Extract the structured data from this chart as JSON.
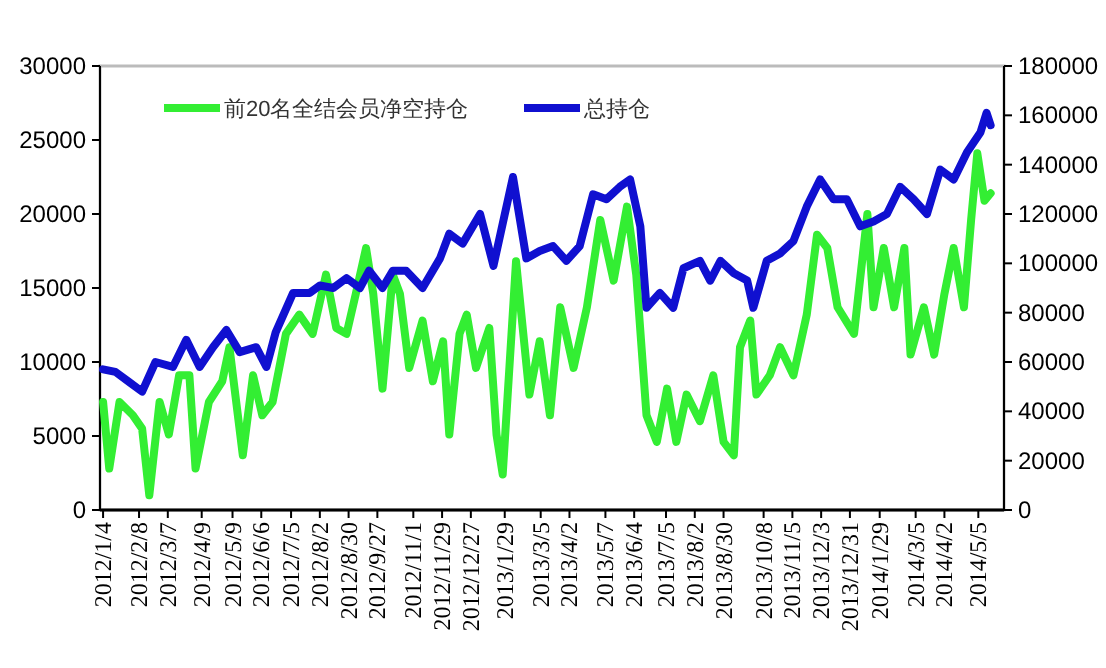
{
  "chart_data": {
    "type": "line",
    "xlim": [
      "2012-01-01",
      "2014-05-30"
    ],
    "xticks": [
      {
        "value": "2012-01-04",
        "label": "2012/1/4"
      },
      {
        "value": "2012-02-08",
        "label": "2012/2/8"
      },
      {
        "value": "2012-03-07",
        "label": "2012/3/7"
      },
      {
        "value": "2012-04-09",
        "label": "2012/4/9"
      },
      {
        "value": "2012-05-09",
        "label": "2012/5/9"
      },
      {
        "value": "2012-06-06",
        "label": "2012/6/6"
      },
      {
        "value": "2012-07-05",
        "label": "2012/7/5"
      },
      {
        "value": "2012-08-02",
        "label": "2012/8/2"
      },
      {
        "value": "2012-08-30",
        "label": "2012/8/30"
      },
      {
        "value": "2012-09-27",
        "label": "2012/9/27"
      },
      {
        "value": "2012-11-01",
        "label": "2012/11/1"
      },
      {
        "value": "2012-11-29",
        "label": "2012/11/29"
      },
      {
        "value": "2012-12-27",
        "label": "2012/12/27"
      },
      {
        "value": "2013-01-29",
        "label": "2013/1/29"
      },
      {
        "value": "2013-03-05",
        "label": "2013/3/5"
      },
      {
        "value": "2013-04-02",
        "label": "2013/4/2"
      },
      {
        "value": "2013-05-07",
        "label": "2013/5/7"
      },
      {
        "value": "2013-06-04",
        "label": "2013/6/4"
      },
      {
        "value": "2013-07-05",
        "label": "2013/7/5"
      },
      {
        "value": "2013-08-02",
        "label": "2013/8/2"
      },
      {
        "value": "2013-08-30",
        "label": "2013/8/30"
      },
      {
        "value": "2013-10-08",
        "label": "2013/10/8"
      },
      {
        "value": "2013-11-05",
        "label": "2013/11/5"
      },
      {
        "value": "2013-12-03",
        "label": "2013/12/3"
      },
      {
        "value": "2013-12-31",
        "label": "2013/12/31"
      },
      {
        "value": "2014-01-29",
        "label": "2014/1/29"
      },
      {
        "value": "2014-03-05",
        "label": "2014/3/5"
      },
      {
        "value": "2014-04-02",
        "label": "2014/4/2"
      },
      {
        "value": "2014-05-05",
        "label": "2014/5/5"
      }
    ],
    "ylim": [
      0,
      30000
    ],
    "yticks": [
      0,
      5000,
      10000,
      15000,
      20000,
      25000,
      30000
    ],
    "y2lim": [
      0,
      180000
    ],
    "y2ticks": [
      0,
      20000,
      40000,
      60000,
      80000,
      100000,
      120000,
      140000,
      160000,
      180000
    ],
    "legend": "top",
    "series": [
      {
        "name": "前20名全结会员净空持仓",
        "color": "#33ee33",
        "x": [
          "2012-01-04",
          "2012-01-10",
          "2012-01-20",
          "2012-02-02",
          "2012-02-11",
          "2012-02-18",
          "2012-02-28",
          "2012-03-08",
          "2012-03-18",
          "2012-03-28",
          "2012-04-03",
          "2012-04-16",
          "2012-04-29",
          "2012-05-06",
          "2012-05-19",
          "2012-05-29",
          "2012-06-07",
          "2012-06-17",
          "2012-06-30",
          "2012-07-13",
          "2012-07-26",
          "2012-08-08",
          "2012-08-18",
          "2012-08-28",
          "2012-09-06",
          "2012-09-16",
          "2012-09-23",
          "2012-10-02",
          "2012-10-12",
          "2012-10-19",
          "2012-10-28",
          "2012-11-10",
          "2012-11-20",
          "2012-11-30",
          "2012-12-06",
          "2012-12-16",
          "2012-12-23",
          "2013-01-01",
          "2013-01-14",
          "2013-01-21",
          "2013-01-27",
          "2013-02-09",
          "2013-02-22",
          "2013-03-04",
          "2013-03-14",
          "2013-03-24",
          "2013-04-06",
          "2013-04-19",
          "2013-05-02",
          "2013-05-15",
          "2013-05-28",
          "2013-06-06",
          "2013-06-16",
          "2013-06-26",
          "2013-07-06",
          "2013-07-15",
          "2013-07-25",
          "2013-08-07",
          "2013-08-20",
          "2013-08-30",
          "2013-09-09",
          "2013-09-15",
          "2013-09-25",
          "2013-10-01",
          "2013-10-14",
          "2013-10-24",
          "2013-11-06",
          "2013-11-19",
          "2013-11-29",
          "2013-12-09",
          "2013-12-19",
          "2014-01-04",
          "2014-01-17",
          "2014-01-23",
          "2014-02-02",
          "2014-02-12",
          "2014-02-22",
          "2014-02-28",
          "2014-03-13",
          "2014-03-23",
          "2014-04-02",
          "2014-04-11",
          "2014-04-21",
          "2014-04-28",
          "2014-05-04",
          "2014-05-11",
          "2014-05-17"
        ],
        "values": [
          7300,
          2800,
          7300,
          6400,
          5500,
          1000,
          7300,
          5100,
          9100,
          9100,
          2800,
          7300,
          8700,
          11000,
          3700,
          9100,
          6400,
          7300,
          11900,
          13200,
          11900,
          15900,
          12300,
          11900,
          14600,
          17700,
          14600,
          8200,
          15900,
          14600,
          9600,
          12800,
          8700,
          11400,
          5100,
          11900,
          13200,
          9600,
          12300,
          5100,
          2400,
          16800,
          7800,
          11400,
          6400,
          13700,
          9600,
          13700,
          19600,
          15500,
          20500,
          15900,
          6400,
          4600,
          8200,
          4600,
          7800,
          6000,
          9100,
          4600,
          3700,
          11000,
          12800,
          7800,
          9100,
          11000,
          9100,
          13200,
          18600,
          17700,
          13700,
          11900,
          20000,
          13700,
          17700,
          13700,
          17700,
          10500,
          13700,
          10500,
          14600,
          17700,
          13700,
          19600,
          24100,
          20900,
          21400
        ]
      },
      {
        "name": "总持仓",
        "color": "#1010d0",
        "axis": "y2",
        "x": [
          "2012-01-04",
          "2012-01-16",
          "2012-01-29",
          "2012-02-11",
          "2012-02-24",
          "2012-03-12",
          "2012-03-25",
          "2012-04-07",
          "2012-04-20",
          "2012-05-03",
          "2012-05-16",
          "2012-06-01",
          "2012-06-11",
          "2012-06-20",
          "2012-07-07",
          "2012-07-23",
          "2012-08-02",
          "2012-08-15",
          "2012-08-28",
          "2012-09-10",
          "2012-09-19",
          "2012-10-02",
          "2012-10-12",
          "2012-10-25",
          "2012-11-10",
          "2012-11-27",
          "2012-12-06",
          "2012-12-19",
          "2013-01-05",
          "2013-01-18",
          "2013-02-06",
          "2013-02-19",
          "2013-03-04",
          "2013-03-17",
          "2013-03-30",
          "2013-04-12",
          "2013-04-25",
          "2013-05-08",
          "2013-05-21",
          "2013-05-31",
          "2013-06-10",
          "2013-06-16",
          "2013-06-29",
          "2013-07-12",
          "2013-07-22",
          "2013-08-07",
          "2013-08-17",
          "2013-08-27",
          "2013-09-09",
          "2013-09-22",
          "2013-09-28",
          "2013-10-11",
          "2013-10-24",
          "2013-11-06",
          "2013-11-19",
          "2013-12-02",
          "2013-12-15",
          "2013-12-28",
          "2014-01-10",
          "2014-01-23",
          "2014-02-05",
          "2014-02-18",
          "2014-03-03",
          "2014-03-16",
          "2014-03-29",
          "2014-04-11",
          "2014-04-24",
          "2014-05-07",
          "2014-05-13",
          "2014-05-17"
        ],
        "values": [
          57000,
          56000,
          52000,
          48000,
          60000,
          58000,
          69000,
          58000,
          66000,
          73000,
          64000,
          66000,
          58000,
          72000,
          88000,
          88000,
          91000,
          90000,
          94000,
          90000,
          97000,
          90000,
          97000,
          97000,
          90000,
          102000,
          112000,
          108000,
          120000,
          99000,
          135000,
          102000,
          105000,
          107000,
          101000,
          107000,
          128000,
          126000,
          131000,
          134000,
          115000,
          82000,
          88000,
          82000,
          98000,
          101000,
          93000,
          101000,
          96000,
          93000,
          82000,
          101000,
          104000,
          109000,
          123000,
          134000,
          126000,
          126000,
          115000,
          117000,
          120000,
          131000,
          126000,
          120000,
          138000,
          134000,
          145000,
          153000,
          161000,
          156000
        ]
      }
    ]
  }
}
